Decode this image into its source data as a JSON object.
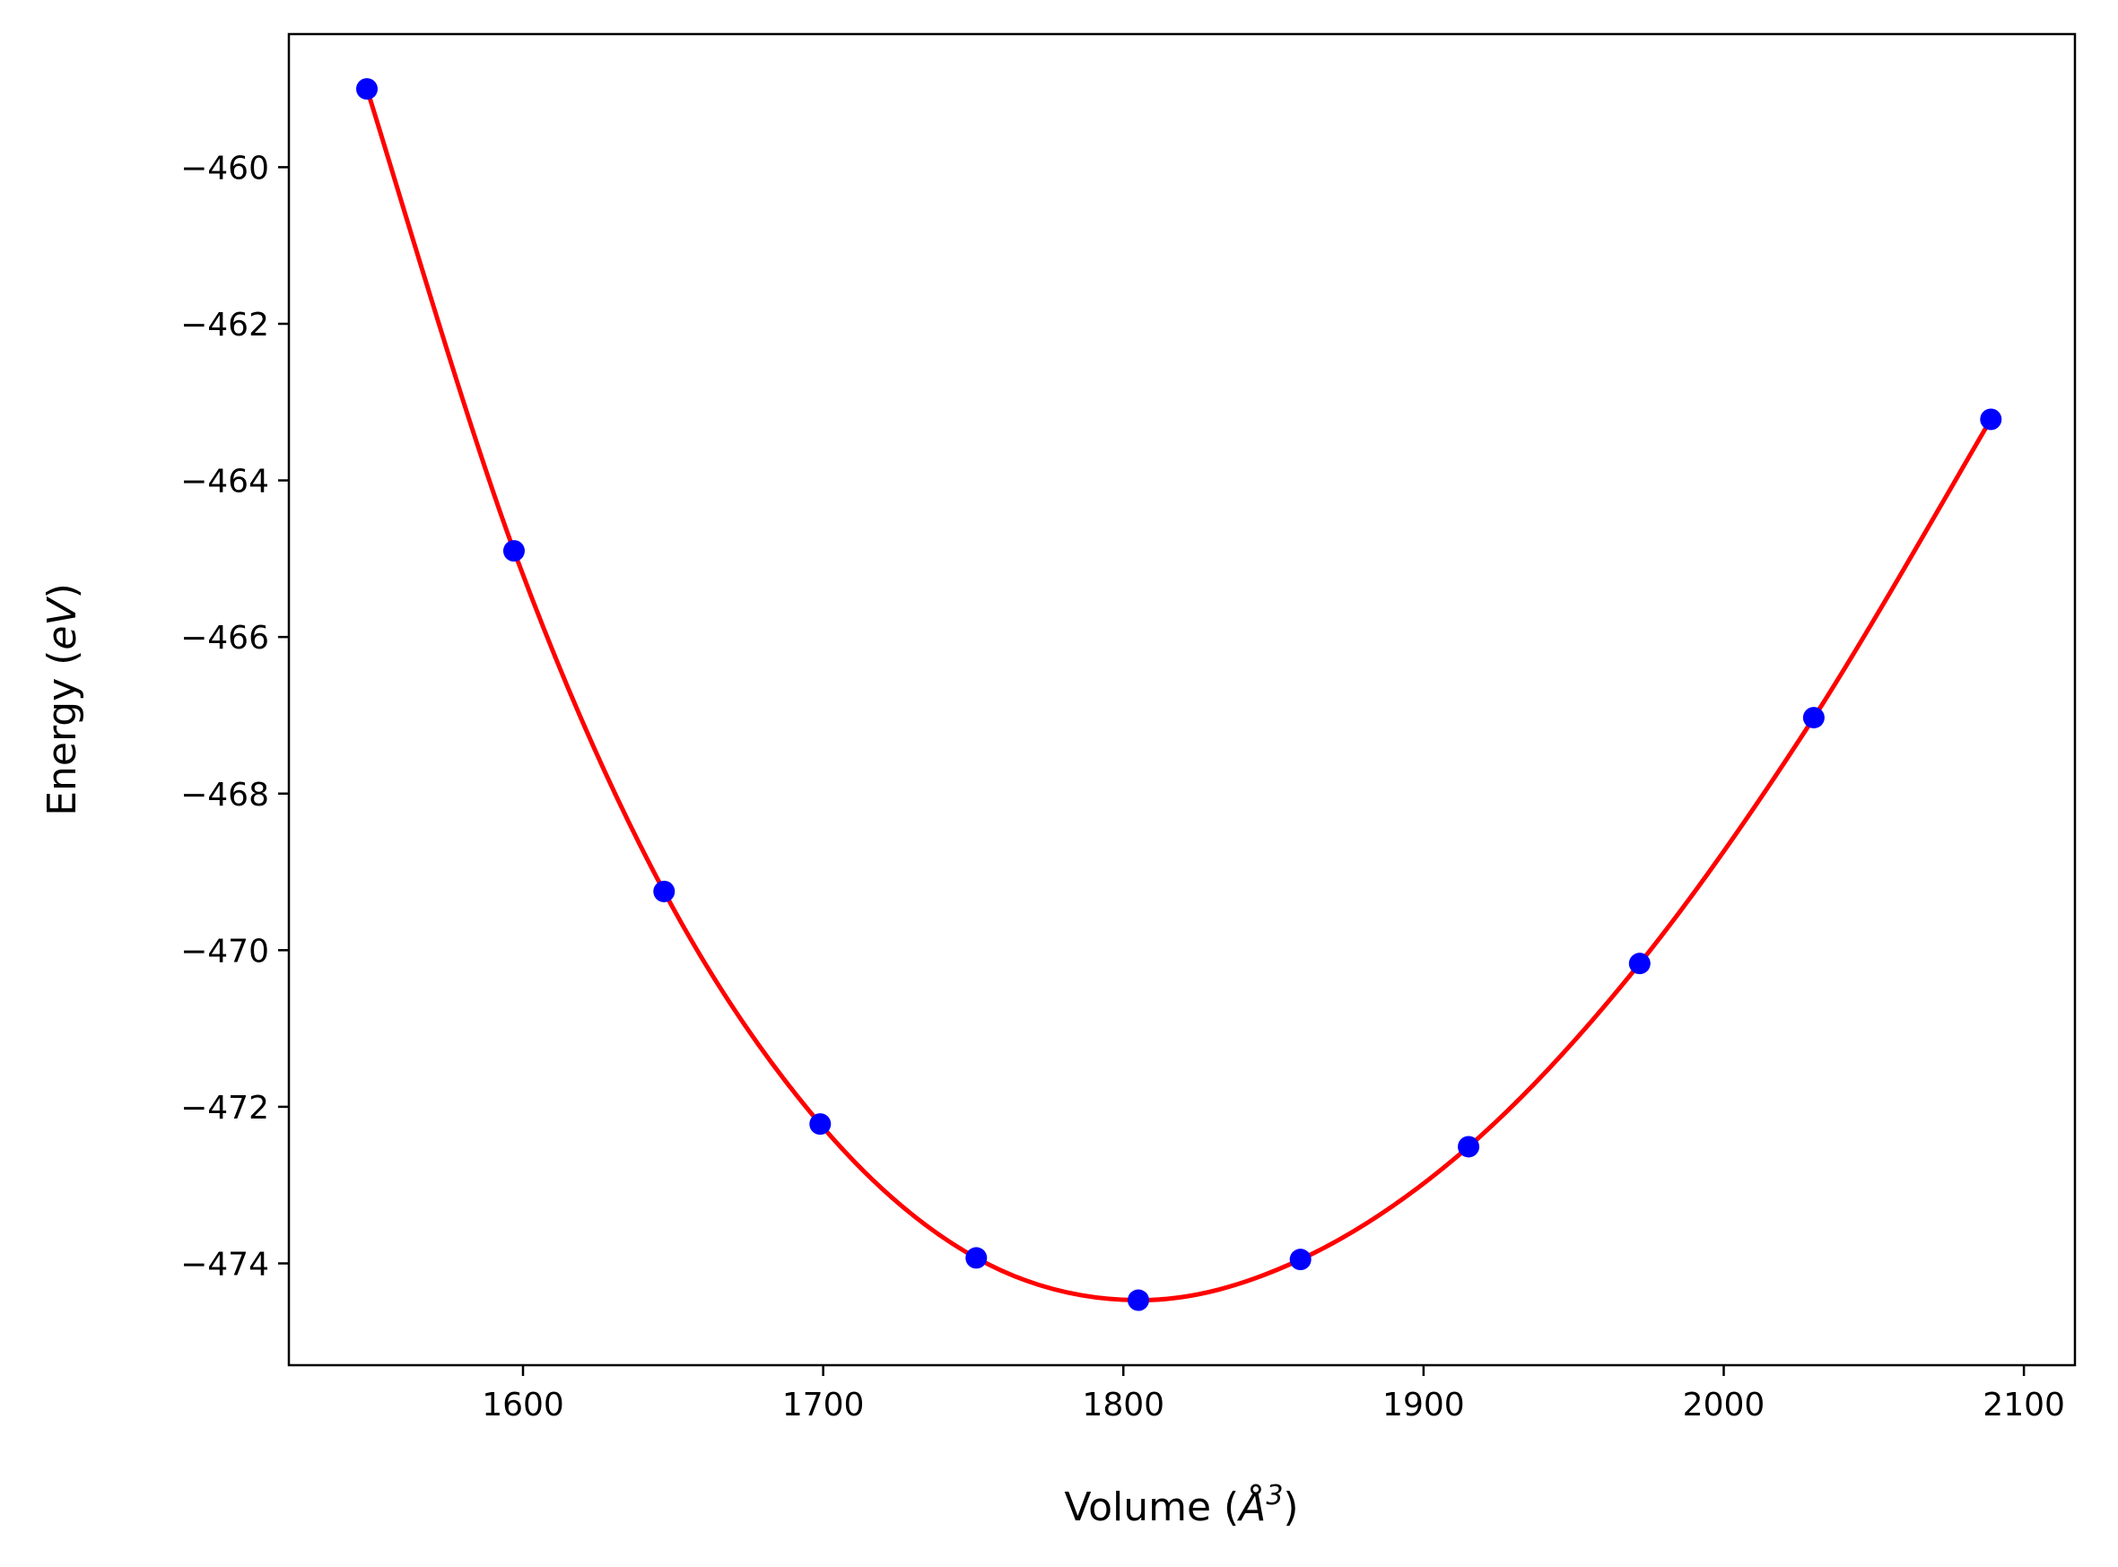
{
  "chart_data": {
    "type": "scatter",
    "xlabel_main": "Volume (",
    "xlabel_unit": "Å",
    "xlabel_power": "3",
    "xlabel_close": ")",
    "ylabel_main": "Energy (",
    "ylabel_unit": "eV",
    "ylabel_close": ")",
    "xlim": [
      1522,
      2117
    ],
    "ylim": [
      -475.3,
      -458.3
    ],
    "xticks": [
      1600,
      1700,
      1800,
      1900,
      2000,
      2100
    ],
    "xtick_labels": [
      "1600",
      "1700",
      "1800",
      "1900",
      "2000",
      "2100"
    ],
    "yticks": [
      -460,
      -462,
      -464,
      -466,
      -468,
      -470,
      -472,
      -474
    ],
    "ytick_labels": [
      "−460",
      "−462",
      "−464",
      "−466",
      "−468",
      "−470",
      "−472",
      "−474"
    ],
    "grid": false,
    "series": [
      {
        "kind": "points",
        "color": "#0000ff",
        "x": [
          1548,
          1597,
          1647,
          1699,
          1751,
          1805,
          1859,
          1915,
          1972,
          2030,
          2089
        ],
        "y": [
          -459.0,
          -464.9,
          -469.25,
          -472.22,
          -473.93,
          -474.47,
          -473.95,
          -472.51,
          -470.17,
          -467.03,
          -463.22
        ]
      },
      {
        "kind": "fit",
        "color": "#ff0000",
        "x": [
          1548,
          1597,
          1647,
          1699,
          1751,
          1805,
          1859,
          1915,
          1972,
          2030,
          2089
        ],
        "y": [
          -459.0,
          -464.9,
          -469.25,
          -472.22,
          -473.93,
          -474.47,
          -473.95,
          -472.51,
          -470.17,
          -467.03,
          -463.22
        ]
      }
    ]
  }
}
